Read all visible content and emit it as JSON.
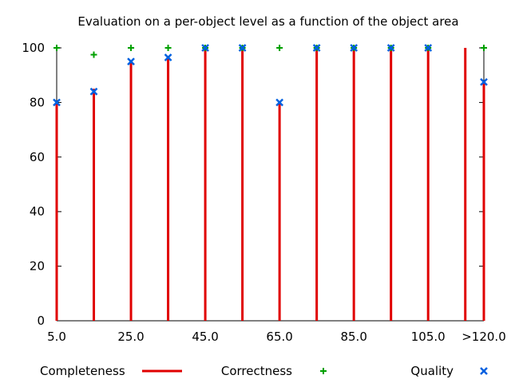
{
  "chart_data": {
    "type": "bar",
    "title": "Evaluation on a per-object level as a function of the object area",
    "xlabel": "",
    "ylabel": "",
    "ylim": [
      0,
      100
    ],
    "xlim": [
      5,
      120
    ],
    "yticks": [
      "0",
      "20",
      "40",
      "60",
      "80",
      "100"
    ],
    "xticks": [
      "5.0",
      "25.0",
      "45.0",
      "65.0",
      "85.0",
      "105.0",
      ">120.0"
    ],
    "x": [
      5,
      15,
      25,
      35,
      45,
      55,
      65,
      75,
      85,
      95,
      105,
      115,
      120
    ],
    "grid": false,
    "legend_position": "bottom",
    "series": [
      {
        "name": "Completeness",
        "style": "impulse",
        "color": "#e00000",
        "values": [
          80,
          85,
          95,
          97,
          100,
          100,
          80,
          100,
          100,
          100,
          100,
          100,
          87
        ]
      },
      {
        "name": "Correctness",
        "style": "plus",
        "color": "#00a000",
        "values": [
          100,
          97.5,
          100,
          100,
          100,
          100,
          100,
          100,
          100,
          100,
          100,
          null,
          100
        ]
      },
      {
        "name": "Quality",
        "style": "cross",
        "color": "#0060e0",
        "values": [
          80,
          84,
          95,
          96.5,
          100,
          100,
          80,
          100,
          100,
          100,
          100,
          null,
          87.5
        ]
      }
    ]
  }
}
